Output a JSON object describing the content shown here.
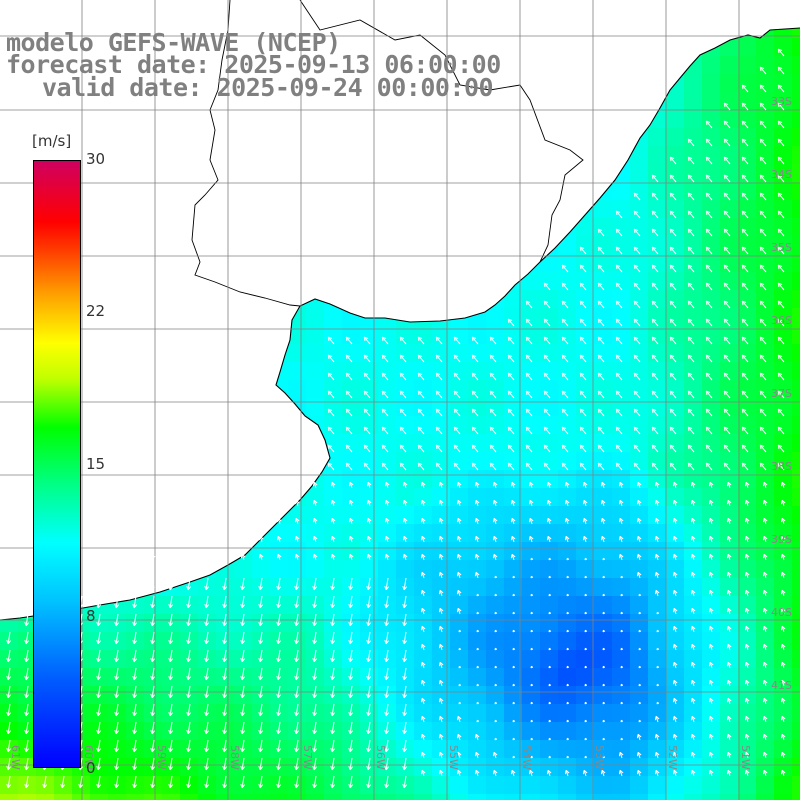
{
  "title": {
    "line1": "modelo GEFS-WAVE (NCEP)",
    "line2": "forecast date: 2025-09-13 06:00:00",
    "line3": "valid date: 2025-09-24 00:00:00"
  },
  "colorbar": {
    "unit": "[m/s]",
    "ticks": [
      "30",
      "22",
      "15",
      "8",
      "0"
    ],
    "colors": [
      "#0000ff",
      "#0060ff",
      "#00c0ff",
      "#00ffff",
      "#00ff80",
      "#00ff00",
      "#c0ff00",
      "#ffff00",
      "#ffa000",
      "#ff4000",
      "#ff0000",
      "#d00060"
    ]
  },
  "map": {
    "lon_labels": [
      "61W",
      "60W",
      "59W",
      "58W",
      "57W",
      "56W",
      "55W",
      "54W",
      "53W",
      "52W",
      "51W"
    ],
    "lat_labels": [
      "33S",
      "34S",
      "35S",
      "36S",
      "37S",
      "38S",
      "39S",
      "40S",
      "41S"
    ],
    "land_color": "#ffffff",
    "coast_color": "#000000",
    "arrow_color": "#ffffff"
  }
}
